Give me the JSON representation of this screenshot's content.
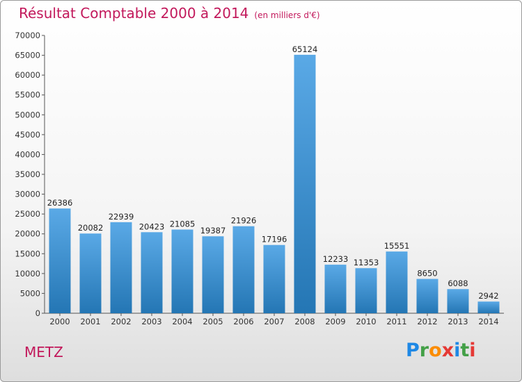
{
  "title": {
    "main": "Résultat Comptable 2000 à 2014",
    "unit": "(en milliers d'€)"
  },
  "city": "METZ",
  "logo": {
    "letters": [
      "P",
      "r",
      "o",
      "x",
      "i",
      "t",
      "i"
    ],
    "colors": [
      "#1e88e5",
      "#43a047",
      "#fb8c00",
      "#e53935",
      "#1e88e5",
      "#43a047",
      "#e53935"
    ]
  },
  "colors": {
    "bar_top": "#5aa9e6",
    "bar_bottom": "#2476b4",
    "title": "#c2185b",
    "grid": "#dddddd"
  },
  "chart_data": {
    "type": "bar",
    "title": "Résultat Comptable 2000 à 2014 (en milliers d'€)",
    "xlabel": "",
    "ylabel": "",
    "categories": [
      "2000",
      "2001",
      "2002",
      "2003",
      "2004",
      "2005",
      "2006",
      "2007",
      "2008",
      "2009",
      "2010",
      "2011",
      "2012",
      "2013",
      "2014"
    ],
    "values": [
      26386,
      20082,
      22939,
      20423,
      21085,
      19387,
      21926,
      17196,
      65124,
      12233,
      11353,
      15551,
      8650,
      6088,
      2942
    ],
    "ylim": [
      0,
      70000
    ],
    "yticks": [
      0,
      5000,
      10000,
      15000,
      20000,
      25000,
      30000,
      35000,
      40000,
      45000,
      50000,
      55000,
      60000,
      65000,
      70000
    ],
    "grid": false,
    "legend": "none"
  }
}
